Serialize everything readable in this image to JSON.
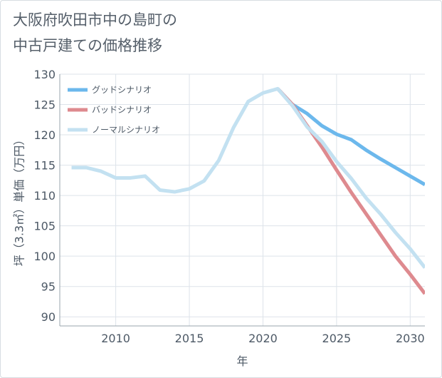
{
  "title": "大阪府吹田市中の島町の\n中古戸建ての価格推移",
  "colors": {
    "good": "#6cb8ec",
    "bad": "#de8a8f",
    "normal": "#c3e1f1",
    "grid": "#dde3ea",
    "axis": "#9aa4ae"
  },
  "chart_data": {
    "type": "line",
    "title": "大阪府吹田市中の島町の中古戸建ての価格推移",
    "xlabel": "年",
    "ylabel": "坪（3.3㎡）単価（万円）",
    "xlim": [
      2006.2,
      2031
    ],
    "ylim": [
      88.5,
      130
    ],
    "xticks": [
      2010,
      2015,
      2020,
      2025,
      2030
    ],
    "yticks": [
      90,
      95,
      100,
      105,
      110,
      115,
      120,
      125,
      130
    ],
    "legend_position": "top-left",
    "series": [
      {
        "name": "グッドシナリオ",
        "key": "good",
        "x": [
          2021,
          2022,
          2023,
          2024,
          2025,
          2026,
          2027,
          2028,
          2029,
          2030,
          2031
        ],
        "values": [
          127.6,
          125.0,
          123.5,
          121.5,
          120.1,
          119.2,
          117.5,
          116.0,
          114.6,
          113.2,
          111.8
        ]
      },
      {
        "name": "バッドシナリオ",
        "key": "bad",
        "x": [
          2021,
          2022,
          2023,
          2024,
          2025,
          2026,
          2027,
          2028,
          2029,
          2030,
          2031
        ],
        "values": [
          127.6,
          125.0,
          121.5,
          118.0,
          114.2,
          110.5,
          107.0,
          103.5,
          100.0,
          97.0,
          93.8
        ]
      },
      {
        "name": "ノーマルシナリオ",
        "key": "normal",
        "x": [
          2007,
          2008,
          2009,
          2010,
          2011,
          2012,
          2013,
          2014,
          2015,
          2016,
          2017,
          2018,
          2019,
          2020,
          2021,
          2022,
          2023,
          2024,
          2025,
          2026,
          2027,
          2028,
          2029,
          2030,
          2031
        ],
        "values": [
          114.6,
          114.6,
          114.0,
          112.9,
          112.9,
          113.2,
          110.9,
          110.6,
          111.1,
          112.4,
          115.8,
          121.2,
          125.5,
          126.9,
          127.6,
          124.8,
          121.3,
          118.9,
          115.6,
          112.8,
          109.6,
          106.9,
          103.9,
          101.2,
          98.1
        ]
      }
    ]
  }
}
